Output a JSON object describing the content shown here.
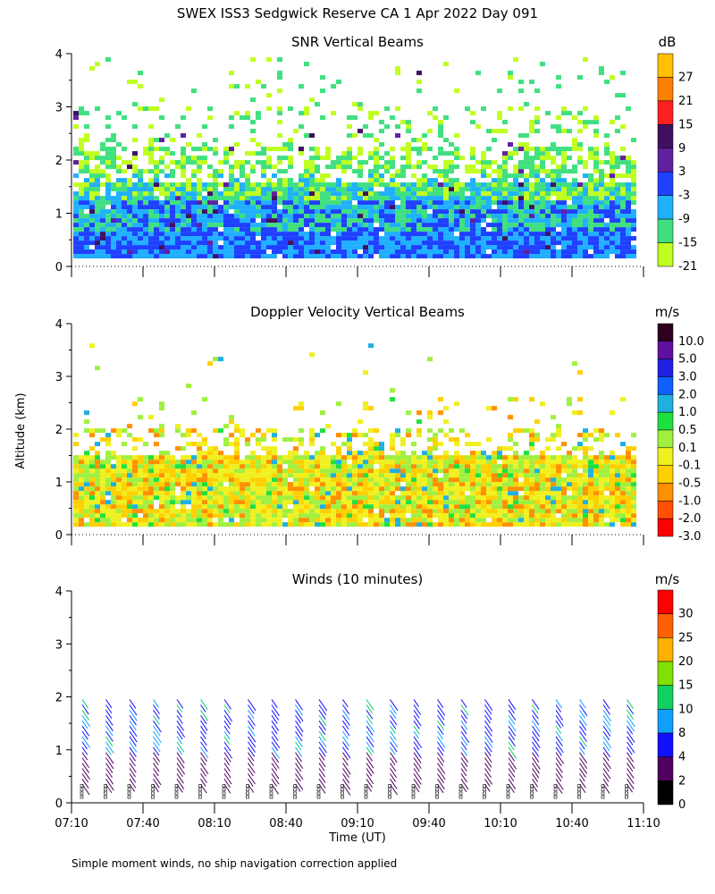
{
  "figure": {
    "title": "SWEX ISS3 Sedgwick Reserve CA    1 Apr 2022 Day 091",
    "ylabel": "Altitude (km)",
    "xlabel": "Time (UT)",
    "footnote": "Simple moment winds, no ship navigation correction applied"
  },
  "chart_data": [
    {
      "type": "heatmap",
      "title": "SNR Vertical Beams",
      "units": "dB",
      "xlabel": "Time (UT)",
      "ylabel": "Altitude (km)",
      "x_ticks": [
        "07:10",
        "07:40",
        "08:10",
        "08:40",
        "09:10",
        "09:40",
        "10:10",
        "10:40",
        "11:10"
      ],
      "y_ticks": [
        "0",
        "1",
        "2",
        "3",
        "4"
      ],
      "ylim": [
        0,
        4
      ],
      "colorbar_labels": [
        "27",
        "21",
        "15",
        "9",
        "3",
        "-3",
        "-9",
        "-15",
        "-21"
      ],
      "colorbar_colors": [
        "#ffc000",
        "#ff8000",
        "#ff2020",
        "#401060",
        "#6020a0",
        "#2040ff",
        "#20b0ff",
        "#40e080",
        "#c0ff20"
      ]
    },
    {
      "type": "heatmap",
      "title": "Doppler Velocity Vertical Beams",
      "units": "m/s",
      "xlabel": "Time (UT)",
      "ylabel": "Altitude (km)",
      "x_ticks": [
        "07:10",
        "07:40",
        "08:10",
        "08:40",
        "09:10",
        "09:40",
        "10:10",
        "10:40",
        "11:10"
      ],
      "y_ticks": [
        "0",
        "1",
        "2",
        "3",
        "4"
      ],
      "ylim": [
        0,
        4
      ],
      "colorbar_labels": [
        "10.0",
        "5.0",
        "3.0",
        "2.0",
        "1.0",
        "0.5",
        "0.1",
        "-0.1",
        "-0.5",
        "-1.0",
        "-2.0",
        "-3.0"
      ],
      "colorbar_colors": [
        "#300020",
        "#6010a0",
        "#2020e0",
        "#1060ff",
        "#20b0e0",
        "#20e040",
        "#a0f040",
        "#f0f020",
        "#ffd000",
        "#ff9000",
        "#ff5000",
        "#ff0000"
      ]
    },
    {
      "type": "barbs",
      "title": "Winds (10 minutes)",
      "units": "m/s",
      "xlabel": "Time (UT)",
      "ylabel": "Altitude (km)",
      "x_ticks": [
        "07:10",
        "07:40",
        "08:10",
        "08:40",
        "09:10",
        "09:40",
        "10:10",
        "10:40",
        "11:10"
      ],
      "y_ticks": [
        "0",
        "1",
        "2",
        "3",
        "4"
      ],
      "ylim": [
        0,
        4
      ],
      "colorbar_labels": [
        "30",
        "25",
        "20",
        "15",
        "10",
        "8",
        "4",
        "2",
        "0"
      ],
      "colorbar_colors": [
        "#ff0000",
        "#ff6000",
        "#ffb000",
        "#80e000",
        "#10d060",
        "#10a0ff",
        "#1010ff",
        "#500060",
        "#000000"
      ]
    }
  ]
}
